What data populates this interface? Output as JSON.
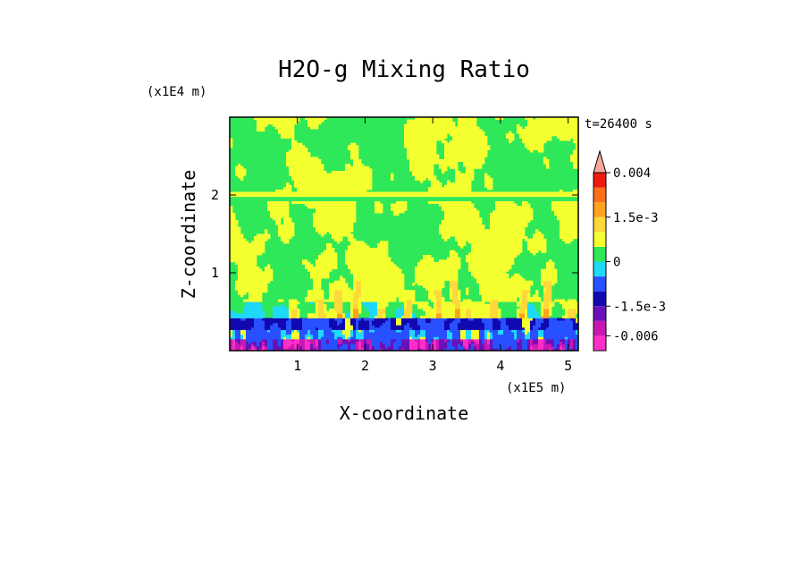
{
  "chart_data": {
    "type": "heatmap",
    "title": "H2O-g Mixing Ratio",
    "xlabel": "X-coordinate",
    "ylabel": "Z-coordinate",
    "x_unit": "(x1E5 m)",
    "y_unit": "(x1E4 m)",
    "time_label": "t=26400 s",
    "xlim": [
      0,
      5.15
    ],
    "ylim": [
      0,
      3.0
    ],
    "x_ticks": [
      {
        "value": 1,
        "label": "1"
      },
      {
        "value": 2,
        "label": "2"
      },
      {
        "value": 3,
        "label": "3"
      },
      {
        "value": 4,
        "label": "4"
      },
      {
        "value": 5,
        "label": "5"
      }
    ],
    "y_ticks": [
      {
        "value": 1,
        "label": "1"
      },
      {
        "value": 2,
        "label": "2"
      }
    ],
    "colorbar": {
      "levels": [
        -0.009,
        -0.006,
        -0.003,
        -0.0015,
        -0.001,
        -0.0005,
        0,
        0.0005,
        0.001,
        0.0015,
        0.002,
        0.003,
        0.004,
        0.005
      ],
      "colors": [
        "#ff2ec8",
        "#c818b4",
        "#6a10b8",
        "#1208b0",
        "#2850ff",
        "#20d8f8",
        "#2ee85a",
        "#f4ff30",
        "#ffd83a",
        "#ffa21e",
        "#ff7018",
        "#ee1a10",
        "#f8a898"
      ],
      "extend": "max",
      "tick_labels": [
        {
          "value": 0.004,
          "label": "0.004"
        },
        {
          "value": 0.0015,
          "label": "1.5e-3"
        },
        {
          "value": 0,
          "label": "0"
        },
        {
          "value": -0.0015,
          "label": "-1.5e-3"
        },
        {
          "value": -0.006,
          "label": "-0.006"
        }
      ]
    },
    "field_description": {
      "dominant_upper_levels": [
        0,
        0.0005
      ],
      "layer_band_z": 2.0,
      "plume_rising_to_z": 1.0,
      "lowest_layer_range": [
        -0.006,
        -0.0015
      ]
    }
  }
}
